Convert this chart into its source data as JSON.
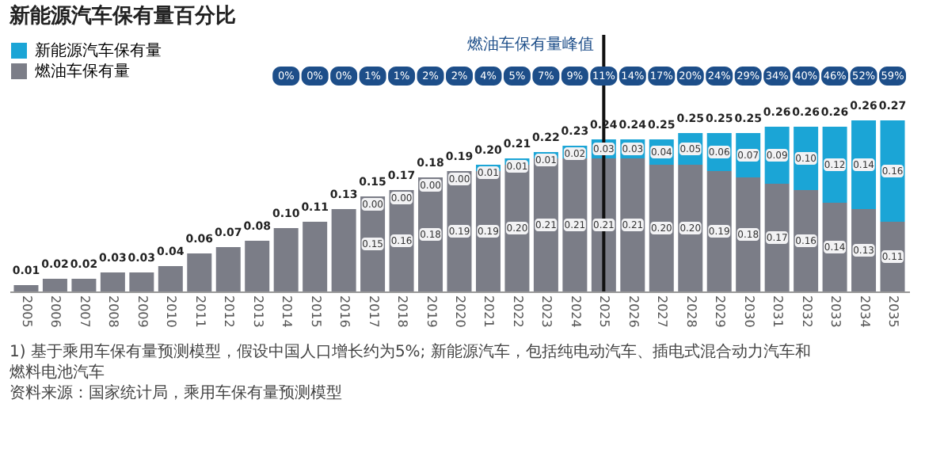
{
  "chart_data": {
    "type": "bar",
    "stacked": true,
    "title": "新能源汽车保有量百分比",
    "legend": "top left",
    "categories": [
      "2005",
      "2006",
      "2007",
      "2008",
      "2009",
      "2010",
      "2011",
      "2012",
      "2013",
      "2014",
      "2015",
      "2016",
      "2017",
      "2018",
      "2019",
      "2020",
      "2021",
      "2022",
      "2023",
      "2024",
      "2025",
      "2026",
      "2027",
      "2028",
      "2029",
      "2030",
      "2031",
      "2032",
      "2033",
      "2034",
      "2035"
    ],
    "series": [
      {
        "name": "燃油车保有量",
        "color": "#7b7d87",
        "values": [
          0.01,
          0.02,
          0.02,
          0.03,
          0.03,
          0.04,
          0.06,
          0.07,
          0.08,
          0.1,
          0.11,
          0.13,
          0.15,
          0.16,
          0.18,
          0.19,
          0.19,
          0.2,
          0.21,
          0.21,
          0.21,
          0.21,
          0.2,
          0.2,
          0.19,
          0.18,
          0.17,
          0.16,
          0.14,
          0.13,
          0.11
        ],
        "value_labels": [
          null,
          null,
          null,
          null,
          null,
          null,
          null,
          null,
          null,
          null,
          null,
          null,
          "0.15",
          "0.16",
          "0.18",
          "0.19",
          "0.19",
          "0.20",
          "0.21",
          "0.21",
          "0.21",
          "0.21",
          "0.20",
          "0.20",
          "0.19",
          "0.18",
          "0.17",
          "0.16",
          "0.14",
          "0.13",
          "0.11"
        ]
      },
      {
        "name": "新能源汽车保有量",
        "color": "#1ba5d6",
        "values": [
          null,
          null,
          null,
          null,
          null,
          null,
          null,
          null,
          null,
          null,
          null,
          null,
          0,
          0,
          0,
          0,
          0.01,
          0.01,
          0.01,
          0.02,
          0.03,
          0.03,
          0.04,
          0.05,
          0.06,
          0.07,
          0.09,
          0.1,
          0.12,
          0.14,
          0.16
        ],
        "value_labels": [
          null,
          null,
          null,
          null,
          null,
          null,
          null,
          null,
          null,
          null,
          null,
          null,
          "0.00",
          "0.00",
          "0.00",
          "0.00",
          "0.01",
          "0.01",
          "0.01",
          "0.02",
          "0.03",
          "0.03",
          "0.04",
          "0.05",
          "0.06",
          "0.07",
          "0.09",
          "0.10",
          "0.12",
          "0.14",
          "0.16"
        ]
      }
    ],
    "totals": [
      "0.01",
      "0.02",
      "0.02",
      "0.03",
      "0.03",
      "0.04",
      "0.06",
      "0.07",
      "0.08",
      "0.10",
      "0.11",
      "0.13",
      "0.15",
      "0.17",
      "0.18",
      "0.19",
      "0.20",
      "0.21",
      "0.22",
      "0.23",
      "0.24",
      "0.24",
      "0.25",
      "0.25",
      "0.25",
      "0.25",
      "0.26",
      "0.26",
      "0.26",
      "0.26",
      "0.27"
    ],
    "ref_lines": [
      {
        "axis": "x",
        "value": "2025",
        "label": "燃油车保有量峰值",
        "color": "#111111"
      }
    ],
    "annotations": [
      "0%",
      "0%",
      "0%",
      "1%",
      "1%",
      "2%",
      "2%",
      "4%",
      "5%",
      "7%",
      "9%",
      "11%",
      "14%",
      "17%",
      "20%",
      "24%",
      "29%",
      "34%",
      "40%",
      "46%",
      "52%",
      "59%",
      "1) 基于乘用车保有量预测模型，假设中国人口增长约为5%; 新能源汽车，包括纯电动汽车、插电式混合动力汽车和燃料电池汽车",
      "资料来源：国家统计局，乘用车保有量预测模型"
    ]
  }
}
